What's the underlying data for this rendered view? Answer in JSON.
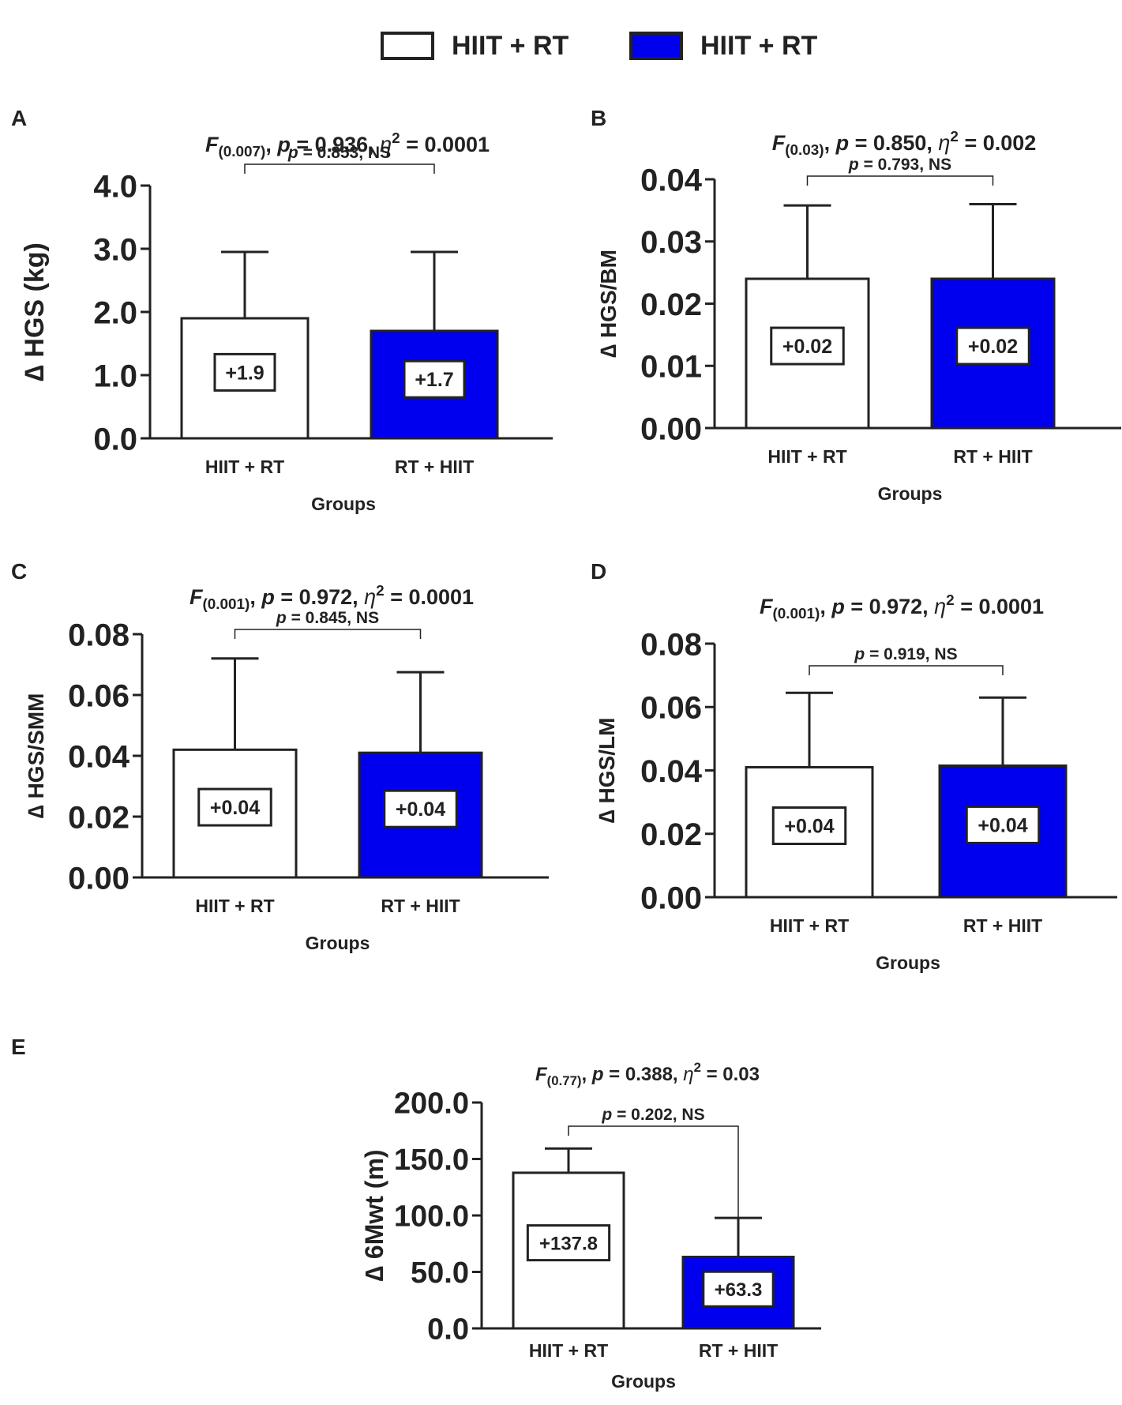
{
  "legend": {
    "items": [
      {
        "label": "HIIT + RT",
        "color": "#ffffff"
      },
      {
        "label": "HIIT + RT",
        "color": "#0000ee"
      }
    ]
  },
  "colors": {
    "white_bar": "#ffffff",
    "blue_bar": "#0000ee",
    "stroke": "#222222"
  },
  "chart_data": [
    {
      "id": "A",
      "type": "bar",
      "title": {
        "f": "F",
        "f_sub": "(0.007)",
        "p": "p",
        "p_text": " = 0.936, ",
        "eta": "η",
        "eta_sup": "2",
        "eta_text": " = 0.0001",
        "sep": ", "
      },
      "categories": [
        "HIIT + RT",
        "RT + HIIT"
      ],
      "values": [
        1.9,
        1.7
      ],
      "errors": [
        1.05,
        1.25
      ],
      "data_labels": [
        "+1.9",
        "+1.7"
      ],
      "xlabel": "Groups",
      "ylabel": "∆ HGS (kg)",
      "ylim": [
        0,
        4
      ],
      "yticks": [
        "0.0",
        "1.0",
        "2.0",
        "3.0",
        "4.0"
      ],
      "ytick_values": [
        0,
        1,
        2,
        3,
        4
      ],
      "comparison": {
        "p": "p",
        "text": " = 0.853, NS"
      }
    },
    {
      "id": "B",
      "type": "bar",
      "title": {
        "f": "F",
        "f_sub": "(0.03)",
        "p": "p",
        "p_text": " = 0.850, ",
        "eta": "η",
        "eta_sup": "2",
        "eta_text": " = 0.002",
        "sep": ", "
      },
      "categories": [
        "HIIT + RT",
        "RT + HIIT"
      ],
      "values": [
        0.024,
        0.024
      ],
      "errors": [
        0.0118,
        0.012
      ],
      "data_labels": [
        "+0.02",
        "+0.02"
      ],
      "xlabel": "Groups",
      "ylabel": "∆ HGS/BM",
      "ylim": [
        0,
        0.04
      ],
      "yticks": [
        "0.00",
        "0.01",
        "0.02",
        "0.03",
        "0.04"
      ],
      "ytick_values": [
        0,
        0.01,
        0.02,
        0.03,
        0.04
      ],
      "comparison": {
        "p": "p",
        "text": " = 0.793, NS"
      }
    },
    {
      "id": "C",
      "type": "bar",
      "title": {
        "f": "F",
        "f_sub": "(0.001)",
        "p": "p",
        "p_text": " = 0.972, ",
        "eta": "η",
        "eta_sup": "2",
        "eta_text": " = 0.0001",
        "sep": ", "
      },
      "categories": [
        "HIIT + RT",
        "RT + HIIT"
      ],
      "values": [
        0.042,
        0.041
      ],
      "errors": [
        0.03,
        0.0265
      ],
      "data_labels": [
        "+0.04",
        "+0.04"
      ],
      "xlabel": "Groups",
      "ylabel": "∆ HGS/SMM",
      "ylim": [
        0,
        0.08
      ],
      "yticks": [
        "0.00",
        "0.02",
        "0.04",
        "0.06",
        "0.08"
      ],
      "ytick_values": [
        0,
        0.02,
        0.04,
        0.06,
        0.08
      ],
      "comparison": {
        "p": "p",
        "text": " = 0.845, NS"
      }
    },
    {
      "id": "D",
      "type": "bar",
      "title": {
        "f": "F",
        "f_sub": "(0.001)",
        "p": "p",
        "p_text": " = 0.972, ",
        "eta": "η",
        "eta_sup": "2",
        "eta_text": " = 0.0001",
        "sep": ", "
      },
      "categories": [
        "HIIT + RT",
        "RT + HIIT"
      ],
      "values": [
        0.041,
        0.0415
      ],
      "errors": [
        0.0235,
        0.0215
      ],
      "data_labels": [
        "+0.04",
        "+0.04"
      ],
      "xlabel": "Groups",
      "ylabel": "∆ HGS/LM",
      "ylim": [
        0,
        0.08
      ],
      "yticks": [
        "0.00",
        "0.02",
        "0.04",
        "0.06",
        "0.08"
      ],
      "ytick_values": [
        0,
        0.02,
        0.04,
        0.06,
        0.08
      ],
      "comparison": {
        "p": "p",
        "text": " = 0.919, NS"
      }
    },
    {
      "id": "E",
      "type": "bar",
      "title": {
        "f": "F",
        "f_sub": "(0.77)",
        "p": "p",
        "p_text": " = 0.388, ",
        "eta": "η",
        "eta_sup": "2",
        "eta_text": " = 0.03",
        "sep": ", "
      },
      "categories": [
        "HIIT + RT",
        "RT + HIIT"
      ],
      "values": [
        137.8,
        63.3
      ],
      "errors": [
        21.5,
        34.5
      ],
      "data_labels": [
        "+137.8",
        "+63.3"
      ],
      "xlabel": "Groups",
      "ylabel": "∆ 6Mwt (m)",
      "ylim": [
        0,
        200
      ],
      "yticks": [
        "0.0",
        "50.0",
        "100.0",
        "150.0",
        "200.0"
      ],
      "ytick_values": [
        0,
        50,
        100,
        150,
        200
      ],
      "comparison": {
        "p": "p",
        "text": " = 0.202, NS"
      }
    }
  ]
}
